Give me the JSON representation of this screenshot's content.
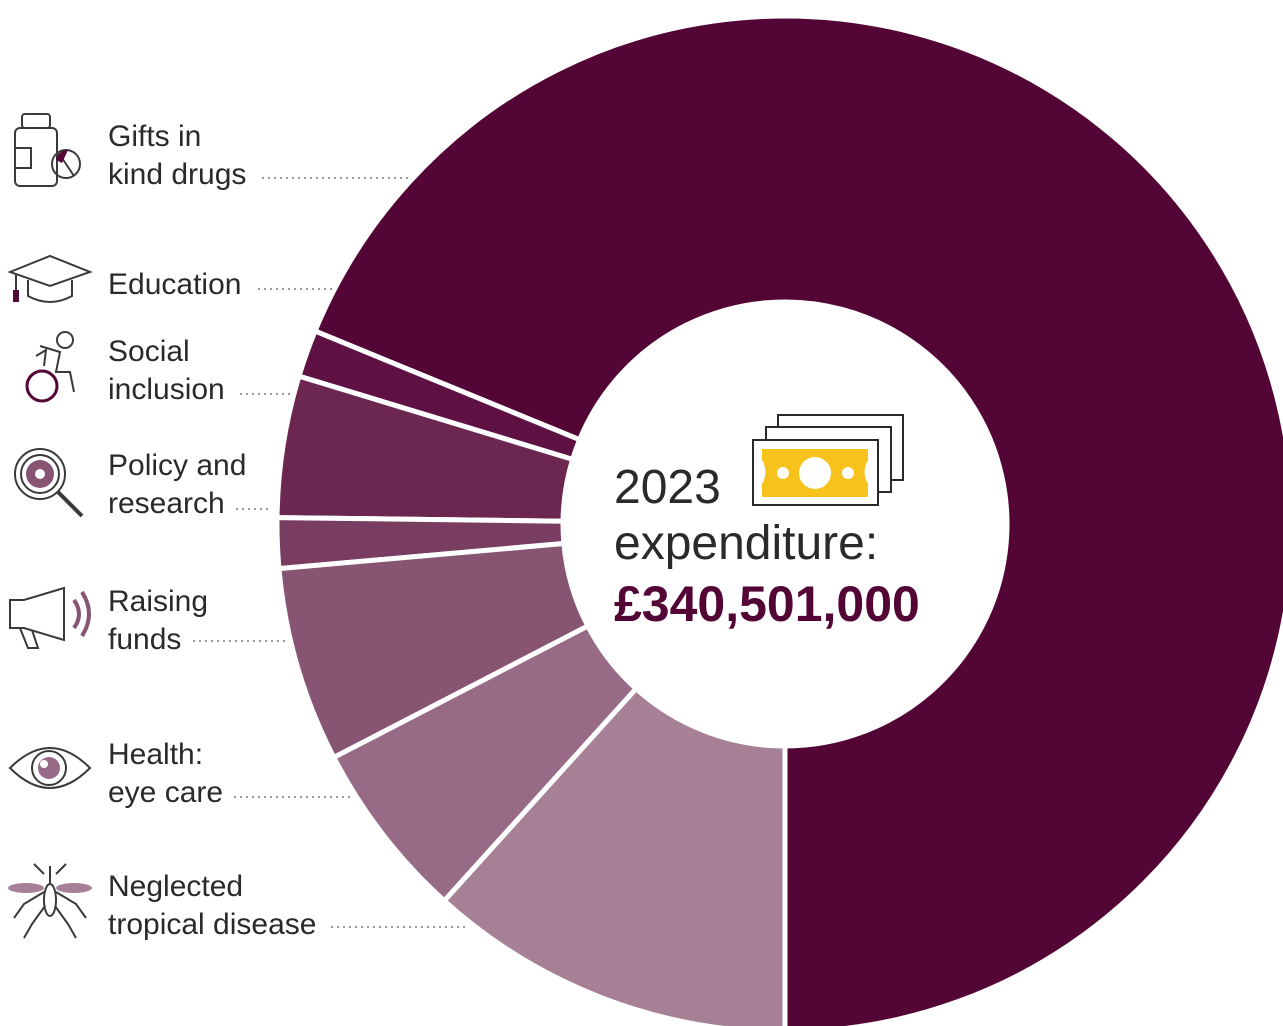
{
  "colors": {
    "drugs": "#530535",
    "education": "#5f1143",
    "social": "#6b2750",
    "policy": "#7a3d62",
    "funds": "#875572",
    "eye": "#976b85",
    "ntd": "#a68095",
    "accent_gold": "#f7c21c",
    "text": "#2a2a2a"
  },
  "center": {
    "year": "2023",
    "label": "expenditure:",
    "total": "£340,501,000",
    "icon": "banknotes-icon"
  },
  "chart_data": {
    "type": "pie",
    "style": "donut",
    "total_text": "£340,501,000",
    "slices": [
      {
        "category": "Gifts in kind drugs",
        "share_pct": 68.8,
        "icon": "medicine-bottle-icon"
      },
      {
        "category": "Education",
        "share_pct": 1.5,
        "icon": "graduation-cap-icon"
      },
      {
        "category": "Social inclusion",
        "share_pct": 4.5,
        "icon": "wheelchair-icon"
      },
      {
        "category": "Policy and research",
        "share_pct": 1.6,
        "icon": "magnifier-icon"
      },
      {
        "category": "Raising funds",
        "share_pct": 6.2,
        "icon": "megaphone-icon"
      },
      {
        "category": "Health: eye care",
        "share_pct": 5.7,
        "icon": "eye-icon"
      },
      {
        "category": "Neglected tropical disease",
        "share_pct": 11.7,
        "icon": "mosquito-icon"
      }
    ]
  },
  "labels": [
    {
      "line1": "Gifts in",
      "line2": "kind drugs"
    },
    {
      "line1": "Education",
      "line2": ""
    },
    {
      "line1": "Social",
      "line2": "inclusion"
    },
    {
      "line1": "Policy and",
      "line2": "research"
    },
    {
      "line1": "Raising",
      "line2": "funds"
    },
    {
      "line1": "Health:",
      "line2": "eye care"
    },
    {
      "line1": "Neglected",
      "line2": "tropical disease"
    }
  ]
}
